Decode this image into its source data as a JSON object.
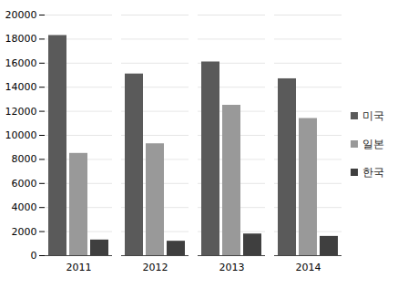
{
  "chart_data": {
    "type": "bar",
    "categories": [
      "2011",
      "2012",
      "2013",
      "2014"
    ],
    "series": [
      {
        "name": "미국",
        "color": "#5a5a5a",
        "values": [
          18300,
          15100,
          16100,
          14700
        ]
      },
      {
        "name": "일본",
        "color": "#999999",
        "values": [
          8500,
          9300,
          12500,
          11400
        ]
      },
      {
        "name": "한국",
        "color": "#3f3f3f",
        "values": [
          1300,
          1200,
          1800,
          1600
        ]
      }
    ],
    "ylim": [
      0,
      20000
    ],
    "yticks": [
      0,
      2000,
      4000,
      6000,
      8000,
      10000,
      12000,
      14000,
      16000,
      18000,
      20000
    ],
    "grid": true,
    "legend": "right"
  }
}
